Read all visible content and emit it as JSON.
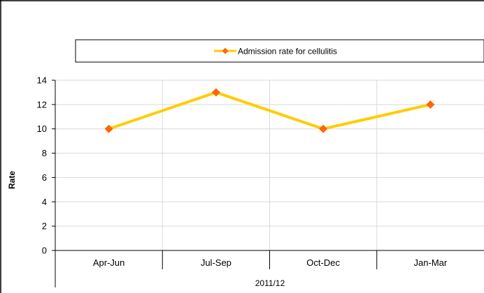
{
  "chart_data": {
    "type": "line",
    "categories": [
      "Apr-Jun",
      "Jul-Sep",
      "Oct-Dec",
      "Jan-Mar"
    ],
    "group_label": "2011/12",
    "series": [
      {
        "name": "Admission rate for cellulitis",
        "values": [
          10,
          13,
          10,
          12
        ]
      }
    ],
    "ylabel": "Rate",
    "ylim": [
      0,
      14
    ],
    "yticks": [
      0,
      2,
      4,
      6,
      8,
      10,
      12,
      14
    ],
    "grid": true,
    "legend": "top",
    "colors": {
      "line": "#FFCC00",
      "marker": "#FF6600",
      "grid": "#D9D9D9",
      "axis": "#000000"
    }
  }
}
